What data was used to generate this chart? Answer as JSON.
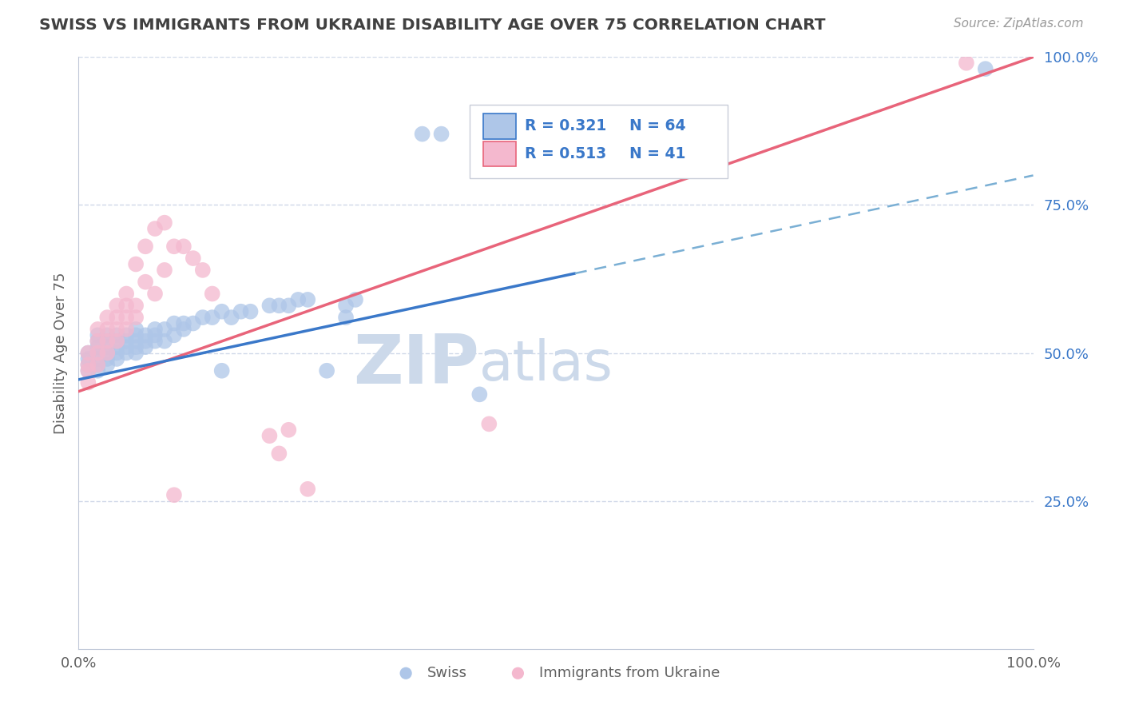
{
  "title": "SWISS VS IMMIGRANTS FROM UKRAINE DISABILITY AGE OVER 75 CORRELATION CHART",
  "source_text": "Source: ZipAtlas.com",
  "ylabel": "Disability Age Over 75",
  "xlim": [
    0,
    1
  ],
  "ylim": [
    0,
    1
  ],
  "swiss_color": "#aec6e8",
  "ukraine_color": "#f4b8ce",
  "swiss_line_color": "#3a78c9",
  "ukraine_line_color": "#e8647a",
  "dashed_color": "#7aafd4",
  "title_color": "#404040",
  "legend_text_color": "#3a78c9",
  "grid_color": "#d0d8e8",
  "watermark_color": "#ccd9ea",
  "watermark_text": "ZIPatlas",
  "axis_color": "#c0c8d8",
  "swiss_x": [
    0.01,
    0.01,
    0.01,
    0.01,
    0.02,
    0.02,
    0.02,
    0.02,
    0.02,
    0.02,
    0.02,
    0.03,
    0.03,
    0.03,
    0.03,
    0.03,
    0.03,
    0.04,
    0.04,
    0.04,
    0.04,
    0.04,
    0.05,
    0.05,
    0.05,
    0.05,
    0.06,
    0.06,
    0.06,
    0.06,
    0.06,
    0.07,
    0.07,
    0.07,
    0.08,
    0.08,
    0.08,
    0.09,
    0.09,
    0.1,
    0.1,
    0.11,
    0.11,
    0.12,
    0.13,
    0.14,
    0.15,
    0.15,
    0.16,
    0.17,
    0.18,
    0.2,
    0.21,
    0.22,
    0.23,
    0.24,
    0.26,
    0.28,
    0.28,
    0.29,
    0.36,
    0.38,
    0.42,
    0.95
  ],
  "swiss_y": [
    0.47,
    0.48,
    0.49,
    0.5,
    0.47,
    0.48,
    0.49,
    0.5,
    0.51,
    0.52,
    0.53,
    0.48,
    0.49,
    0.5,
    0.51,
    0.52,
    0.53,
    0.49,
    0.5,
    0.51,
    0.52,
    0.53,
    0.5,
    0.51,
    0.52,
    0.53,
    0.5,
    0.51,
    0.52,
    0.53,
    0.54,
    0.51,
    0.52,
    0.53,
    0.52,
    0.53,
    0.54,
    0.52,
    0.54,
    0.53,
    0.55,
    0.54,
    0.55,
    0.55,
    0.56,
    0.56,
    0.57,
    0.47,
    0.56,
    0.57,
    0.57,
    0.58,
    0.58,
    0.58,
    0.59,
    0.59,
    0.47,
    0.56,
    0.58,
    0.59,
    0.87,
    0.87,
    0.43,
    0.98
  ],
  "ukraine_x": [
    0.01,
    0.01,
    0.01,
    0.01,
    0.02,
    0.02,
    0.02,
    0.02,
    0.03,
    0.03,
    0.03,
    0.03,
    0.04,
    0.04,
    0.04,
    0.04,
    0.05,
    0.05,
    0.05,
    0.05,
    0.06,
    0.06,
    0.06,
    0.07,
    0.07,
    0.08,
    0.08,
    0.09,
    0.09,
    0.1,
    0.11,
    0.12,
    0.13,
    0.14,
    0.2,
    0.21,
    0.22,
    0.24,
    0.43,
    0.1,
    0.93
  ],
  "ukraine_y": [
    0.45,
    0.47,
    0.48,
    0.5,
    0.48,
    0.5,
    0.52,
    0.54,
    0.5,
    0.52,
    0.54,
    0.56,
    0.52,
    0.54,
    0.56,
    0.58,
    0.54,
    0.56,
    0.58,
    0.6,
    0.56,
    0.58,
    0.65,
    0.62,
    0.68,
    0.6,
    0.71,
    0.64,
    0.72,
    0.68,
    0.68,
    0.66,
    0.64,
    0.6,
    0.36,
    0.33,
    0.37,
    0.27,
    0.38,
    0.26,
    0.99
  ],
  "blue_line_solid_end": 0.52,
  "pink_line_x0": 0.0,
  "pink_line_y0": 0.435,
  "pink_line_x1": 1.0,
  "pink_line_y1": 1.0,
  "blue_line_x0": 0.0,
  "blue_line_y0": 0.455,
  "blue_line_x1": 1.0,
  "blue_line_y1": 0.8
}
